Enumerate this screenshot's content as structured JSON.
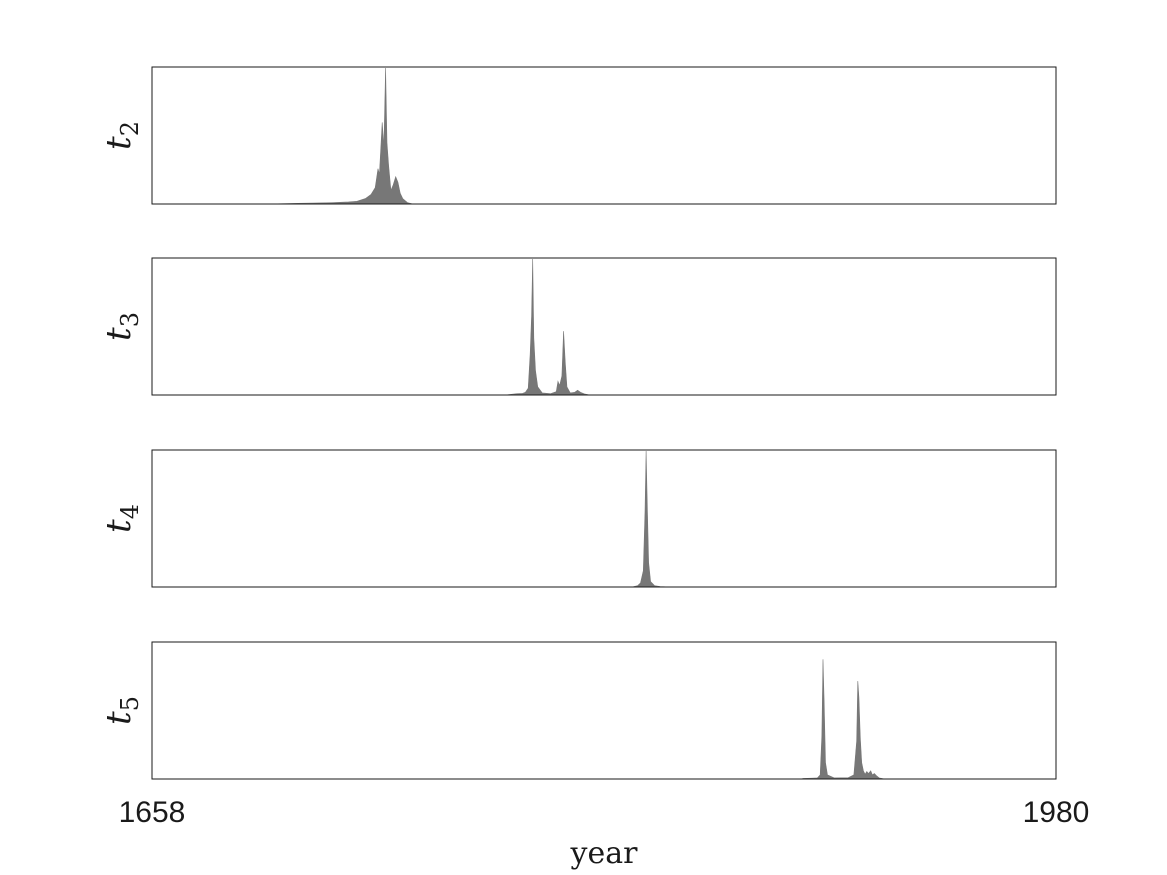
{
  "chart_data": {
    "type": "histogram",
    "xlabel": "year",
    "xlim": [
      1658,
      1980
    ],
    "x_ticks": [
      "1658",
      "1980"
    ],
    "fill_color": "#777777",
    "frame_color": "#1a1a1a",
    "panels": [
      {
        "ylabel_main": "t",
        "ylabel_sub": "2",
        "ymax": 1.0,
        "points": [
          [
            1699,
            0
          ],
          [
            1710,
            0.005
          ],
          [
            1718,
            0.008
          ],
          [
            1722,
            0.01
          ],
          [
            1728,
            0.015
          ],
          [
            1731,
            0.02
          ],
          [
            1734,
            0.04
          ],
          [
            1736,
            0.07
          ],
          [
            1737.5,
            0.12
          ],
          [
            1738.5,
            0.26
          ],
          [
            1739,
            0.22
          ],
          [
            1740,
            0.6
          ],
          [
            1740.6,
            0.42
          ],
          [
            1741.2,
            1.0
          ],
          [
            1741.7,
            0.45
          ],
          [
            1742.3,
            0.28
          ],
          [
            1743.1,
            0.1
          ],
          [
            1743.9,
            0.14
          ],
          [
            1744.8,
            0.2
          ],
          [
            1745.6,
            0.16
          ],
          [
            1746.4,
            0.08
          ],
          [
            1747.3,
            0.04
          ],
          [
            1749,
            0.01
          ],
          [
            1751,
            0
          ]
        ]
      },
      {
        "ylabel_main": "t",
        "ylabel_sub": "3",
        "ymax": 1.0,
        "points": [
          [
            1784,
            0
          ],
          [
            1786,
            0.005
          ],
          [
            1788,
            0.01
          ],
          [
            1790,
            0.012
          ],
          [
            1791,
            0.02
          ],
          [
            1792,
            0.05
          ],
          [
            1792.7,
            0.3
          ],
          [
            1793.2,
            0.58
          ],
          [
            1793.6,
            1.0
          ],
          [
            1794,
            0.42
          ],
          [
            1794.6,
            0.18
          ],
          [
            1795.4,
            0.06
          ],
          [
            1797,
            0.015
          ],
          [
            1800,
            0.01
          ],
          [
            1802,
            0.025
          ],
          [
            1802.6,
            0.1
          ],
          [
            1803.2,
            0.07
          ],
          [
            1804,
            0.14
          ],
          [
            1804.6,
            0.47
          ],
          [
            1805.2,
            0.24
          ],
          [
            1805.8,
            0.06
          ],
          [
            1807,
            0.015
          ],
          [
            1808.6,
            0.02
          ],
          [
            1809.6,
            0.035
          ],
          [
            1810.6,
            0.02
          ],
          [
            1812,
            0.008
          ],
          [
            1814,
            0
          ]
        ]
      },
      {
        "ylabel_main": "t",
        "ylabel_sub": "4",
        "ymax": 1.0,
        "points": [
          [
            1829,
            0
          ],
          [
            1831,
            0.01
          ],
          [
            1832,
            0.03
          ],
          [
            1833,
            0.12
          ],
          [
            1833.6,
            0.55
          ],
          [
            1834,
            1.0
          ],
          [
            1834.4,
            0.62
          ],
          [
            1834.9,
            0.18
          ],
          [
            1835.6,
            0.04
          ],
          [
            1837,
            0.01
          ],
          [
            1839,
            0.003
          ],
          [
            1843,
            0
          ]
        ]
      },
      {
        "ylabel_main": "t",
        "ylabel_sub": "5",
        "ymax": 1.0,
        "points": [
          [
            1889,
            0
          ],
          [
            1890,
            0.004
          ],
          [
            1893,
            0.006
          ],
          [
            1895,
            0.008
          ],
          [
            1896,
            0.03
          ],
          [
            1896.6,
            0.32
          ],
          [
            1897,
            0.88
          ],
          [
            1897.4,
            0.58
          ],
          [
            1897.9,
            0.12
          ],
          [
            1898.6,
            0.03
          ],
          [
            1901,
            0.008
          ],
          [
            1906,
            0.01
          ],
          [
            1908,
            0.03
          ],
          [
            1909,
            0.28
          ],
          [
            1909.4,
            0.72
          ],
          [
            1909.8,
            0.6
          ],
          [
            1910.3,
            0.3
          ],
          [
            1910.8,
            0.12
          ],
          [
            1911.4,
            0.06
          ],
          [
            1912,
            0.035
          ],
          [
            1912.6,
            0.055
          ],
          [
            1913.2,
            0.04
          ],
          [
            1914,
            0.06
          ],
          [
            1914.6,
            0.03
          ],
          [
            1915.3,
            0.04
          ],
          [
            1916,
            0.025
          ],
          [
            1917,
            0.008
          ],
          [
            1919,
            0
          ]
        ]
      }
    ]
  }
}
